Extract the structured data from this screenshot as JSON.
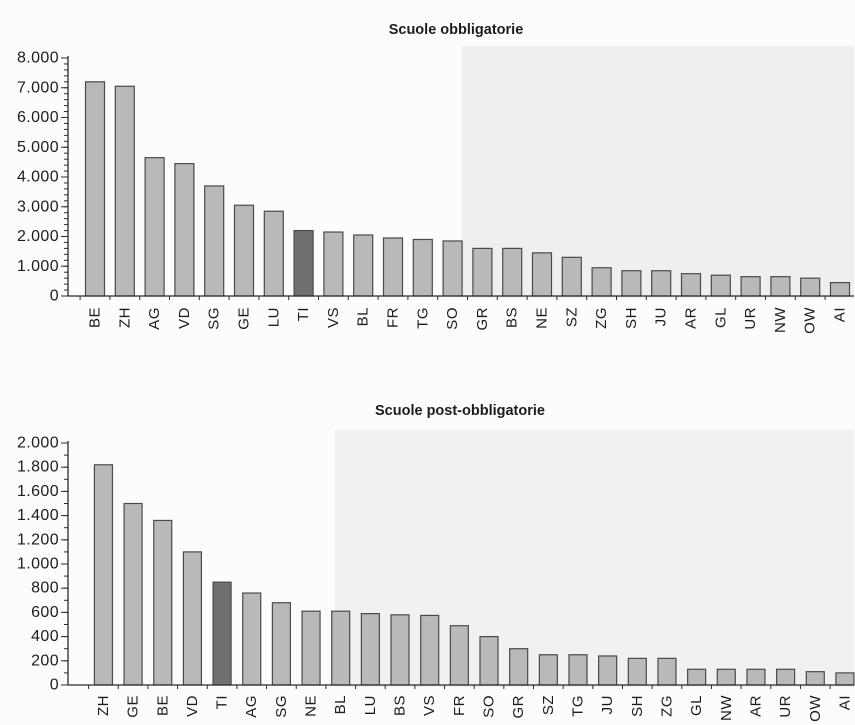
{
  "chart_data": [
    {
      "type": "bar",
      "title": "Scuole obbligatorie",
      "categories": [
        "BE",
        "ZH",
        "AG",
        "VD",
        "SG",
        "GE",
        "LU",
        "TI",
        "VS",
        "BL",
        "FR",
        "TG",
        "SO",
        "GR",
        "BS",
        "NE",
        "SZ",
        "ZG",
        "SH",
        "JU",
        "AR",
        "GL",
        "UR",
        "NW",
        "OW",
        "AI"
      ],
      "values": [
        7200,
        7050,
        4650,
        4450,
        3700,
        3050,
        2850,
        2200,
        2150,
        2050,
        1950,
        1900,
        1850,
        1600,
        1600,
        1450,
        1300,
        950,
        850,
        850,
        750,
        700,
        650,
        650,
        600,
        450
      ],
      "ylim": [
        0,
        8000
      ],
      "yticks": [
        0,
        1000,
        2000,
        3000,
        4000,
        5000,
        6000,
        7000,
        8000
      ],
      "ytick_labels": [
        "0",
        "1.000",
        "2.000",
        "3.000",
        "4.000",
        "5.000",
        "6.000",
        "7.000",
        "8.000"
      ],
      "grid": false,
      "bar_colors": [
        "#b9b9b9",
        "#b9b9b9",
        "#b9b9b9",
        "#b9b9b9",
        "#b9b9b9",
        "#b9b9b9",
        "#b9b9b9",
        "#707070",
        "#b9b9b9",
        "#b9b9b9",
        "#b9b9b9",
        "#b9b9b9",
        "#b9b9b9",
        "#b9b9b9",
        "#b9b9b9",
        "#b9b9b9",
        "#b9b9b9",
        "#b9b9b9",
        "#b9b9b9",
        "#b9b9b9",
        "#b9b9b9",
        "#b9b9b9",
        "#b9b9b9",
        "#b9b9b9",
        "#b9b9b9",
        "#b9b9b9"
      ],
      "bar_outline_color": "#4a4a4a"
    },
    {
      "type": "bar",
      "title": "Scuole post-obbligatorie",
      "categories": [
        "ZH",
        "GE",
        "BE",
        "VD",
        "TI",
        "AG",
        "SG",
        "NE",
        "BL",
        "LU",
        "BS",
        "VS",
        "FR",
        "SO",
        "GR",
        "SZ",
        "TG",
        "JU",
        "SH",
        "ZG",
        "GL",
        "NW",
        "AR",
        "UR",
        "OW",
        "AI"
      ],
      "values": [
        1820,
        1500,
        1360,
        1100,
        850,
        760,
        680,
        610,
        610,
        590,
        580,
        575,
        490,
        400,
        300,
        250,
        250,
        240,
        220,
        220,
        130,
        130,
        130,
        130,
        110,
        100
      ],
      "ylim": [
        0,
        2000
      ],
      "yticks": [
        0,
        200,
        400,
        600,
        800,
        1000,
        1200,
        1400,
        1600,
        1800,
        2000
      ],
      "ytick_labels": [
        "0",
        "200",
        "400",
        "600",
        "800",
        "1.000",
        "1.200",
        "1.400",
        "1.600",
        "1.800",
        "2.000"
      ],
      "grid": false,
      "bar_colors": [
        "#b9b9b9",
        "#b9b9b9",
        "#b9b9b9",
        "#b9b9b9",
        "#707070",
        "#b9b9b9",
        "#b9b9b9",
        "#b9b9b9",
        "#b9b9b9",
        "#b9b9b9",
        "#b9b9b9",
        "#b9b9b9",
        "#b9b9b9",
        "#b9b9b9",
        "#b9b9b9",
        "#b9b9b9",
        "#b9b9b9",
        "#b9b9b9",
        "#b9b9b9",
        "#b9b9b9",
        "#b9b9b9",
        "#b9b9b9",
        "#b9b9b9",
        "#b9b9b9",
        "#b9b9b9",
        "#b9b9b9"
      ],
      "bar_outline_color": "#4a4a4a"
    }
  ]
}
